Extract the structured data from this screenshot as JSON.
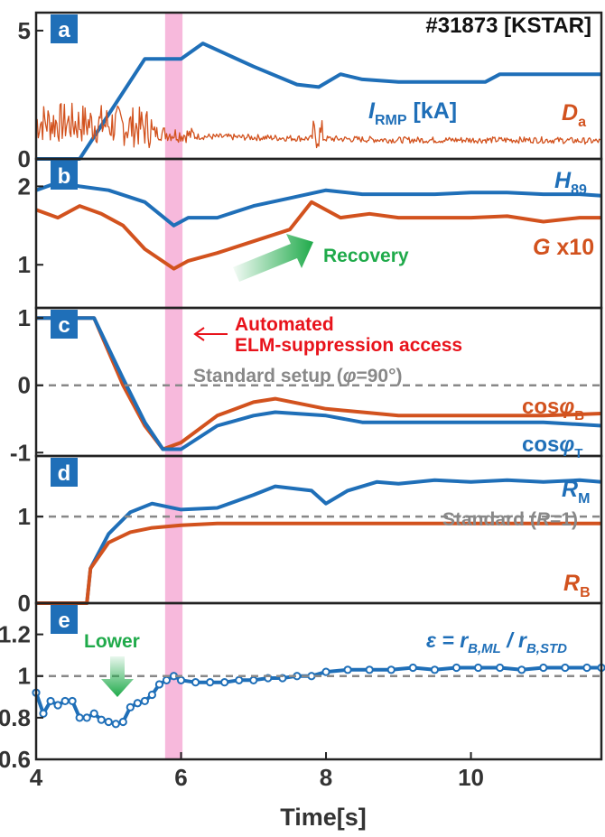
{
  "chart_data": {
    "type": "line",
    "title": "#31873 [KSTAR]",
    "xlabel": "Time[s]",
    "xlim": [
      4,
      11.8
    ],
    "xticks": [
      "4",
      "6",
      "8",
      "10"
    ],
    "highlight": {
      "x0": 5.78,
      "x1": 6.02,
      "color": "#f7b9dc"
    },
    "colors": {
      "blue": "#1f6fb8",
      "orange": "#d2521e",
      "green": "#1faa4a",
      "red": "#e8131b",
      "gray": "#888888"
    },
    "panels": [
      {
        "id": "a",
        "ylim": [
          0,
          5.7
        ],
        "yticks": [
          "0",
          "5"
        ],
        "series": [
          {
            "name": "I_RMP [kA]",
            "label_main": "I",
            "label_sub": "RMP",
            "label_suffix": " [kA]",
            "color": "blue",
            "x": [
              4.0,
              4.6,
              5.5,
              5.8,
              6.0,
              6.3,
              7.0,
              7.6,
              7.9,
              8.2,
              8.5,
              9.0,
              9.5,
              10.0,
              10.2,
              10.4,
              10.8,
              11.2,
              11.8
            ],
            "y": [
              0,
              0,
              3.9,
              3.9,
              3.9,
              4.5,
              3.6,
              2.9,
              2.8,
              3.3,
              3.1,
              3.0,
              3.0,
              3.0,
              3.0,
              3.3,
              3.3,
              3.3,
              3.3
            ]
          },
          {
            "name": "D_a",
            "label_main": "D",
            "label_sub": "a",
            "color": "orange",
            "x": [
              4.0,
              5.0,
              6.0,
              7.0,
              8.0,
              9.0,
              10.0,
              11.0,
              11.8
            ],
            "y": [
              1.2,
              1.1,
              0.85,
              0.8,
              0.75,
              0.7,
              0.7,
              0.7,
              0.65
            ]
          }
        ]
      },
      {
        "id": "b",
        "ylim": [
          0.45,
          2.35
        ],
        "yticks": [
          "1",
          "2"
        ],
        "series": [
          {
            "name": "H_89",
            "label_main": "H",
            "label_sub": "89",
            "color": "blue",
            "x": [
              4.0,
              4.3,
              4.6,
              5.0,
              5.5,
              5.9,
              6.1,
              6.5,
              7.0,
              7.5,
              8.0,
              8.5,
              9.0,
              9.5,
              10.0,
              10.5,
              11.0,
              11.5,
              11.8
            ],
            "y": [
              1.95,
              2.05,
              2.0,
              1.95,
              1.8,
              1.5,
              1.6,
              1.6,
              1.75,
              1.85,
              1.95,
              1.9,
              1.9,
              1.9,
              1.92,
              1.92,
              1.9,
              1.9,
              1.88
            ]
          },
          {
            "name": "G x10",
            "label_main": "G",
            "label_suffix": " x10",
            "color": "orange",
            "x": [
              4.0,
              4.3,
              4.6,
              4.9,
              5.2,
              5.5,
              5.9,
              6.1,
              6.5,
              7.0,
              7.5,
              7.8,
              8.2,
              8.6,
              9.0,
              9.5,
              10.0,
              10.5,
              11.0,
              11.5,
              11.8
            ],
            "y": [
              1.7,
              1.6,
              1.75,
              1.65,
              1.5,
              1.2,
              0.95,
              1.05,
              1.15,
              1.3,
              1.45,
              1.8,
              1.6,
              1.65,
              1.6,
              1.6,
              1.6,
              1.62,
              1.55,
              1.6,
              1.6
            ]
          }
        ],
        "annotations": {
          "recovery": "Recovery"
        }
      },
      {
        "id": "c",
        "ylim": [
          -1.05,
          1.15
        ],
        "yticks": [
          "1",
          "0",
          "-1"
        ],
        "reference": {
          "y": 0,
          "label_pre": "Standard setup (",
          "label_phi": "φ",
          "label_post": "=90°)"
        },
        "series": [
          {
            "name": "cosφ_B",
            "label_main": "cos",
            "label_phi": "φ",
            "label_sub": "B",
            "color": "orange",
            "x": [
              4.0,
              4.8,
              5.2,
              5.5,
              5.75,
              6.0,
              6.5,
              7.0,
              7.3,
              8.0,
              8.5,
              9.0,
              10.0,
              11.0,
              11.8
            ],
            "y": [
              1.0,
              1.0,
              0.0,
              -0.6,
              -0.95,
              -0.85,
              -0.45,
              -0.25,
              -0.2,
              -0.35,
              -0.4,
              -0.45,
              -0.45,
              -0.45,
              -0.42
            ]
          },
          {
            "name": "cosφ_T",
            "label_main": "cos",
            "label_phi": "φ",
            "label_sub": "T",
            "color": "blue",
            "x": [
              4.0,
              4.8,
              5.2,
              5.5,
              5.75,
              6.0,
              6.5,
              7.0,
              7.3,
              8.0,
              8.5,
              9.0,
              10.0,
              11.0,
              11.8
            ],
            "y": [
              1.0,
              1.0,
              0.1,
              -0.55,
              -0.95,
              -0.95,
              -0.6,
              -0.45,
              -0.4,
              -0.45,
              -0.55,
              -0.55,
              -0.55,
              -0.55,
              -0.6
            ]
          }
        ],
        "annotations": {
          "automated_line1": "Automated",
          "automated_line2": "ELM-suppression access"
        }
      },
      {
        "id": "d",
        "ylim": [
          0,
          1.7
        ],
        "yticks": [
          "1",
          "0"
        ],
        "reference": {
          "y": 1,
          "label_pre": "Standard (",
          "label_R": "R",
          "label_post": "=1)"
        },
        "series": [
          {
            "name": "R_M",
            "label_main": "R",
            "label_sub": "M",
            "color": "blue",
            "x": [
              4.0,
              4.7,
              4.75,
              5.0,
              5.3,
              5.6,
              6.0,
              6.5,
              7.0,
              7.3,
              7.8,
              8.0,
              8.3,
              8.7,
              9.0,
              9.5,
              10.0,
              10.5,
              11.0,
              11.5,
              11.8
            ],
            "y": [
              0,
              0,
              0.4,
              0.8,
              1.05,
              1.15,
              1.08,
              1.1,
              1.25,
              1.35,
              1.3,
              1.15,
              1.3,
              1.4,
              1.38,
              1.42,
              1.4,
              1.42,
              1.4,
              1.42,
              1.4
            ]
          },
          {
            "name": "R_B",
            "label_main": "R",
            "label_sub": "B",
            "color": "orange",
            "x": [
              4.0,
              4.7,
              4.75,
              5.0,
              5.3,
              5.6,
              6.0,
              6.5,
              7.0,
              8.0,
              9.0,
              10.0,
              11.0,
              11.8
            ],
            "y": [
              0,
              0,
              0.4,
              0.7,
              0.82,
              0.87,
              0.9,
              0.92,
              0.92,
              0.92,
              0.92,
              0.92,
              0.92,
              0.92
            ]
          }
        ]
      },
      {
        "id": "e",
        "ylim": [
          0.6,
          1.35
        ],
        "yticks": [
          "1.2",
          "1",
          "0.8",
          "0.6"
        ],
        "reference": {
          "y": 1
        },
        "series": [
          {
            "name": "ε = r_B,ML / r_B,STD",
            "label_main": "ε = r",
            "label_sub1": "B,ML",
            "label_mid": " / r",
            "label_sub2": "B,STD",
            "color": "blue",
            "x": [
              4.0,
              4.1,
              4.2,
              4.3,
              4.4,
              4.5,
              4.6,
              4.7,
              4.8,
              4.9,
              5.0,
              5.1,
              5.2,
              5.3,
              5.4,
              5.5,
              5.6,
              5.7,
              5.8,
              5.9,
              6.0,
              6.2,
              6.4,
              6.6,
              6.8,
              7.0,
              7.2,
              7.4,
              7.6,
              7.8,
              8.0,
              8.3,
              8.6,
              8.9,
              9.2,
              9.5,
              9.8,
              10.1,
              10.4,
              10.7,
              11.0,
              11.3,
              11.6,
              11.8
            ],
            "y": [
              0.92,
              0.82,
              0.88,
              0.86,
              0.88,
              0.88,
              0.8,
              0.8,
              0.82,
              0.79,
              0.78,
              0.77,
              0.78,
              0.85,
              0.87,
              0.88,
              0.91,
              0.96,
              0.98,
              1.0,
              0.98,
              0.97,
              0.97,
              0.97,
              0.98,
              0.98,
              0.99,
              0.99,
              1.0,
              1.0,
              1.02,
              1.03,
              1.03,
              1.03,
              1.04,
              1.03,
              1.04,
              1.04,
              1.04,
              1.03,
              1.04,
              1.04,
              1.04,
              1.04
            ]
          }
        ],
        "annotations": {
          "lower": "Lower"
        }
      }
    ]
  }
}
